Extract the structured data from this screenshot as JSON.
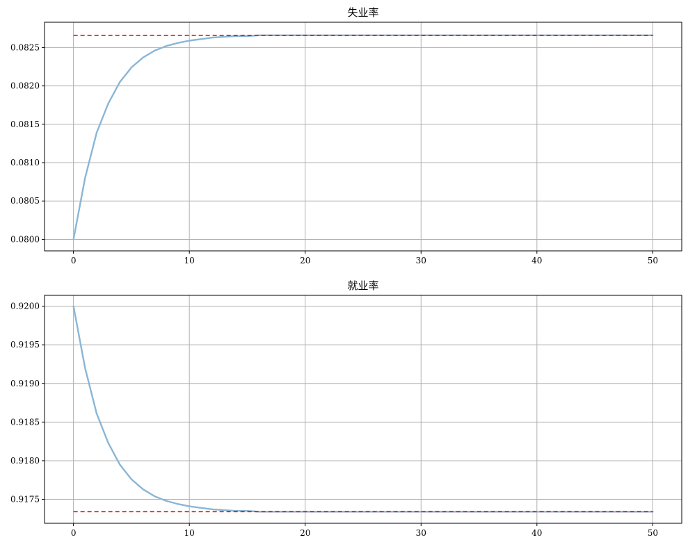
{
  "chart_data": [
    {
      "type": "line",
      "title": "失业率",
      "xlabel": "",
      "ylabel": "",
      "xlim": [
        -2.5,
        52.5
      ],
      "ylim": [
        0.07985,
        0.08283
      ],
      "xticks": [
        0,
        10,
        20,
        30,
        40,
        50
      ],
      "xtick_labels": [
        "0",
        "10",
        "20",
        "30",
        "40",
        "50"
      ],
      "yticks": [
        0.08,
        0.0805,
        0.081,
        0.0815,
        0.082,
        0.0825
      ],
      "ytick_labels": [
        "0.0800",
        "0.0805",
        "0.0810",
        "0.0815",
        "0.0820",
        "0.0825"
      ],
      "grid": true,
      "series": [
        {
          "style": "solid",
          "color": "#8ab6d6",
          "x": [
            0,
            1,
            2,
            3,
            4,
            5,
            6,
            7,
            8,
            9,
            10,
            11,
            12,
            13,
            14,
            15,
            16,
            17,
            18,
            19,
            20,
            21,
            22,
            23,
            24,
            25,
            26,
            27,
            28,
            29,
            30,
            31,
            32,
            33,
            34,
            35,
            36,
            37,
            38,
            39,
            40,
            41,
            42,
            43,
            44,
            45,
            46,
            47,
            48,
            49,
            50
          ],
          "values": [
            0.08,
            0.0808,
            0.08139,
            0.08177,
            0.08205,
            0.08224,
            0.08237,
            0.08246,
            0.08252,
            0.08256,
            0.08259,
            0.08261,
            0.08263,
            0.08264,
            0.08265,
            0.08265,
            0.08266,
            0.08266,
            0.08266,
            0.08266,
            0.08266,
            0.08266,
            0.08266,
            0.08266,
            0.08266,
            0.08266,
            0.08266,
            0.08266,
            0.08266,
            0.08266,
            0.08266,
            0.08266,
            0.08266,
            0.08266,
            0.08266,
            0.08266,
            0.08266,
            0.08266,
            0.08266,
            0.08266,
            0.08266,
            0.08266,
            0.08266,
            0.08266,
            0.08266,
            0.08266,
            0.08266,
            0.08266,
            0.08266,
            0.08266,
            0.08266
          ]
        },
        {
          "style": "dashed",
          "color": "#ff0000",
          "x": [
            0,
            50
          ],
          "values": [
            0.08266,
            0.08266
          ]
        }
      ]
    },
    {
      "type": "line",
      "title": "就业率",
      "xlabel": "",
      "ylabel": "",
      "xlim": [
        -2.5,
        52.5
      ],
      "ylim": [
        0.91719,
        0.92014
      ],
      "xticks": [
        0,
        10,
        20,
        30,
        40,
        50
      ],
      "xtick_labels": [
        "0",
        "10",
        "20",
        "30",
        "40",
        "50"
      ],
      "yticks": [
        0.9175,
        0.918,
        0.9185,
        0.919,
        0.9195,
        0.92
      ],
      "ytick_labels": [
        "0.9175",
        "0.9180",
        "0.9185",
        "0.9190",
        "0.9195",
        "0.9200"
      ],
      "grid": true,
      "series": [
        {
          "style": "solid",
          "color": "#8ab6d6",
          "x": [
            0,
            1,
            2,
            3,
            4,
            5,
            6,
            7,
            8,
            9,
            10,
            11,
            12,
            13,
            14,
            15,
            16,
            17,
            18,
            19,
            20,
            21,
            22,
            23,
            24,
            25,
            26,
            27,
            28,
            29,
            30,
            31,
            32,
            33,
            34,
            35,
            36,
            37,
            38,
            39,
            40,
            41,
            42,
            43,
            44,
            45,
            46,
            47,
            48,
            49,
            50
          ],
          "values": [
            0.92,
            0.9192,
            0.91861,
            0.91823,
            0.91795,
            0.91776,
            0.91763,
            0.91754,
            0.91748,
            0.91744,
            0.91741,
            0.91739,
            0.91737,
            0.91736,
            0.91735,
            0.91735,
            0.91734,
            0.91734,
            0.91734,
            0.91734,
            0.91734,
            0.91734,
            0.91734,
            0.91734,
            0.91734,
            0.91734,
            0.91734,
            0.91734,
            0.91734,
            0.91734,
            0.91734,
            0.91734,
            0.91734,
            0.91734,
            0.91734,
            0.91734,
            0.91734,
            0.91734,
            0.91734,
            0.91734,
            0.91734,
            0.91734,
            0.91734,
            0.91734,
            0.91734,
            0.91734,
            0.91734,
            0.91734,
            0.91734,
            0.91734,
            0.91734
          ]
        },
        {
          "style": "dashed",
          "color": "#ff0000",
          "x": [
            0,
            50
          ],
          "values": [
            0.91734,
            0.91734
          ]
        }
      ]
    }
  ]
}
